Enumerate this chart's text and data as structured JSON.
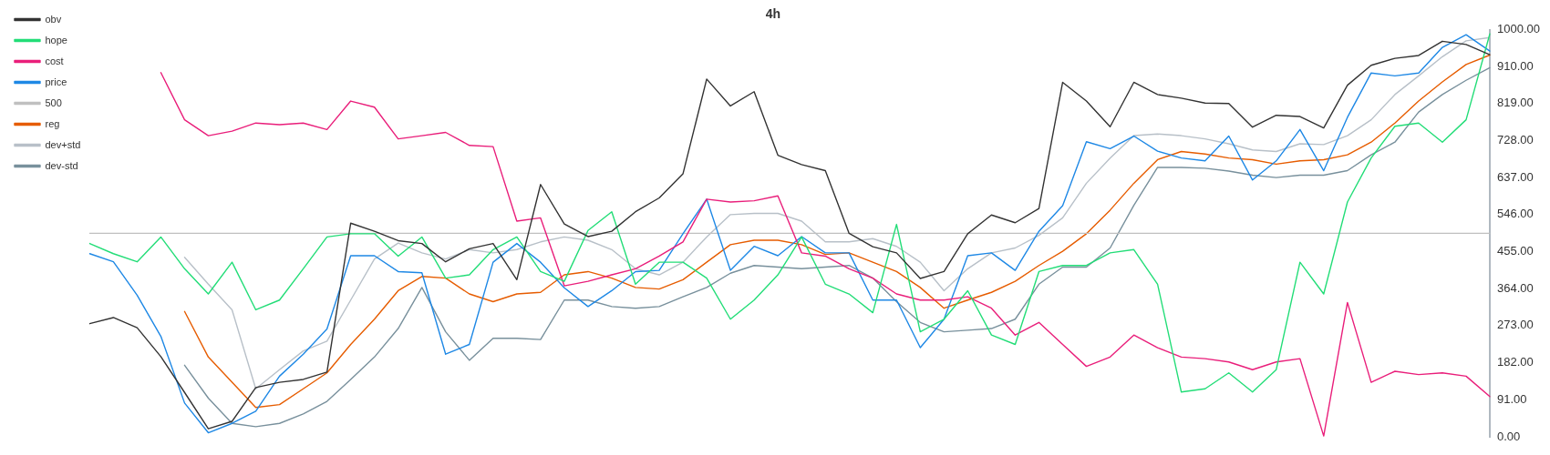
{
  "chart_data": {
    "type": "line",
    "title": "4h",
    "categories": [
      null,
      null,
      null,
      null,
      null,
      null,
      null,
      null,
      null,
      null,
      null,
      null,
      null,
      null,
      null,
      null,
      null,
      null,
      null,
      null,
      null,
      null,
      null,
      null,
      null,
      null,
      null,
      null,
      null,
      null,
      null,
      null,
      null,
      null,
      null,
      null,
      null,
      null,
      null,
      null,
      null,
      null,
      null,
      null,
      null,
      null,
      null,
      null,
      null,
      null,
      null,
      null,
      null,
      null,
      null,
      null,
      null,
      null,
      null,
      null
    ],
    "ylim": [
      0,
      1000
    ],
    "yticks": [
      {
        "value": 0,
        "label": "0.00"
      },
      {
        "value": 91,
        "label": "91.00"
      },
      {
        "value": 182,
        "label": "182.00"
      },
      {
        "value": 273,
        "label": "273.00"
      },
      {
        "value": 364,
        "label": "364.00"
      },
      {
        "value": 455,
        "label": "455.00"
      },
      {
        "value": 546,
        "label": "546.00"
      },
      {
        "value": 637,
        "label": "637.00"
      },
      {
        "value": 728,
        "label": "728.00"
      },
      {
        "value": 819,
        "label": "819.00"
      },
      {
        "value": 910,
        "label": "910.00"
      },
      {
        "value": 1000,
        "label": "1000.00"
      }
    ],
    "grid": false,
    "legend": "top left",
    "marker": "none",
    "line_style": "solid",
    "series": [
      {
        "name": "obv",
        "color": "#333333",
        "values": [
          278,
          293,
          268,
          197,
          109,
          20,
          38,
          121,
          134,
          141,
          159,
          525,
          505,
          482,
          475,
          430,
          462,
          475,
          386,
          620,
          523,
          492,
          505,
          553,
          587,
          646,
          879,
          813,
          848,
          692,
          669,
          654,
          500,
          467,
          452,
          389,
          406,
          499,
          545,
          526,
          561,
          871,
          825,
          762,
          871,
          841,
          832,
          820,
          819,
          761,
          790,
          787,
          759,
          864,
          913,
          930,
          937,
          972,
          964,
          939
        ]
      },
      {
        "name": "hope",
        "color": "#22dd77",
        "values": [
          475,
          450,
          430,
          491,
          413,
          351,
          429,
          312,
          336,
          413,
          491,
          499,
          499,
          444,
          491,
          390,
          398,
          460,
          491,
          406,
          382,
          507,
          553,
          375,
          429,
          429,
          390,
          289,
          336,
          398,
          491,
          375,
          351,
          305,
          522,
          258,
          289,
          359,
          250,
          227,
          406,
          421,
          421,
          452,
          460,
          375,
          110,
          118,
          157,
          110,
          165,
          429,
          351,
          577,
          685,
          763,
          771,
          724,
          779,
          990
        ]
      },
      {
        "name": "cost",
        "color": "#e91e7a",
        "values": [
          null,
          null,
          null,
          895,
          779,
          740,
          751,
          771,
          767,
          771,
          755,
          825,
          810,
          732,
          740,
          748,
          716,
          713,
          530,
          538,
          371,
          382,
          398,
          413,
          444,
          479,
          584,
          577,
          580,
          592,
          452,
          444,
          413,
          390,
          351,
          336,
          336,
          344,
          316,
          250,
          281,
          227,
          173,
          196,
          250,
          219,
          196,
          192,
          184,
          165,
          184,
          192,
          2,
          330,
          134,
          161,
          153,
          157,
          149,
          99
        ]
      },
      {
        "name": "price",
        "color": "#1e88e5",
        "values": [
          450,
          430,
          348,
          247,
          83,
          10,
          33,
          63,
          149,
          203,
          265,
          445,
          445,
          406,
          403,
          203,
          227,
          429,
          475,
          429,
          366,
          320,
          359,
          406,
          409,
          499,
          584,
          409,
          468,
          445,
          492,
          452,
          452,
          336,
          336,
          219,
          289,
          445,
          452,
          409,
          505,
          568,
          725,
          708,
          739,
          702,
          685,
          678,
          739,
          631,
          678,
          755,
          654,
          785,
          894,
          887,
          894,
          957,
          988,
          948
        ]
      },
      {
        "name": "500",
        "color": "#c0c0c0",
        "values": [
          500,
          500,
          500,
          500,
          500,
          500,
          500,
          500,
          500,
          500,
          500,
          500,
          500,
          500,
          500,
          500,
          500,
          500,
          500,
          500,
          500,
          500,
          500,
          500,
          500,
          500,
          500,
          500,
          500,
          500,
          500,
          500,
          500,
          500,
          500,
          500,
          500,
          500,
          500,
          500,
          500,
          500,
          500,
          500,
          500,
          500,
          500,
          500,
          500,
          500,
          500,
          500,
          500,
          500,
          500,
          500,
          500,
          500,
          500,
          500
        ]
      },
      {
        "name": "reg",
        "color": "#e65c00",
        "values": [
          null,
          null,
          null,
          null,
          308,
          196,
          134,
          72,
          79,
          118,
          157,
          227,
          289,
          359,
          394,
          390,
          351,
          332,
          351,
          355,
          398,
          406,
          390,
          367,
          363,
          386,
          429,
          472,
          483,
          483,
          472,
          448,
          452,
          429,
          406,
          367,
          316,
          336,
          355,
          382,
          421,
          456,
          499,
          557,
          623,
          681,
          701,
          695,
          685,
          681,
          670,
          678,
          681,
          693,
          724,
          771,
          825,
          872,
          915,
          938
        ]
      },
      {
        "name": "dev+std",
        "color": "#b8c0c8",
        "values": [
          null,
          null,
          null,
          null,
          441,
          375,
          312,
          118,
          165,
          211,
          235,
          336,
          437,
          476,
          452,
          437,
          460,
          452,
          460,
          479,
          491,
          483,
          460,
          413,
          398,
          429,
          491,
          546,
          549,
          549,
          530,
          479,
          479,
          487,
          468,
          429,
          359,
          413,
          452,
          464,
          495,
          538,
          623,
          685,
          740,
          744,
          740,
          732,
          720,
          705,
          701,
          720,
          718,
          740,
          779,
          841,
          887,
          934,
          973,
          981
        ]
      },
      {
        "name": "dev-std",
        "color": "#78909c",
        "values": [
          null,
          null,
          null,
          null,
          176,
          95,
          33,
          25,
          33,
          56,
          87,
          141,
          196,
          266,
          367,
          258,
          188,
          242,
          242,
          239,
          336,
          336,
          320,
          316,
          320,
          344,
          367,
          402,
          421,
          417,
          413,
          417,
          421,
          390,
          332,
          281,
          258,
          262,
          266,
          289,
          375,
          417,
          417,
          464,
          569,
          662,
          662,
          660,
          653,
          643,
          637,
          643,
          643,
          654,
          693,
          724,
          798,
          841,
          876,
          907
        ]
      }
    ]
  }
}
